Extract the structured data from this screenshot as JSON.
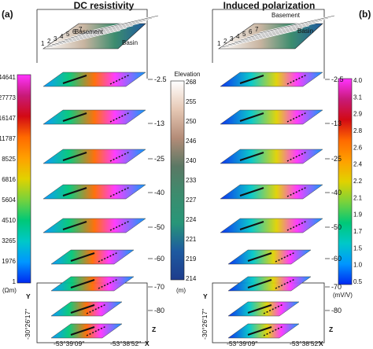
{
  "panel_a": {
    "label": "(a)",
    "title": "DC resistivity",
    "colorbar_ticks": [
      "44641",
      "27773",
      "16147",
      "11787",
      "8525",
      "6816",
      "5604",
      "4510",
      "3265",
      "1976",
      "1"
    ],
    "colorbar_unit": "(Ωm)",
    "colorbar_stops": [
      "#ff33ff",
      "#c81a78",
      "#d20a14",
      "#ff6a00",
      "#ffa000",
      "#e1d200",
      "#78d23c",
      "#00c878",
      "#00c8c8",
      "#0096ff",
      "#0028f0"
    ]
  },
  "panel_b": {
    "label": "(b)",
    "title": "Induced polarization",
    "colorbar_ticks": [
      "4.0",
      "3.1",
      "2.9",
      "2.8",
      "2.6",
      "2.4",
      "2.2",
      "2.1",
      "1.9",
      "1.7",
      "1.5",
      "1.0",
      "0.5"
    ],
    "colorbar_unit": "(mV/V)",
    "colorbar_stops": [
      "#ff33ff",
      "#c81a78",
      "#d20a14",
      "#ff6a00",
      "#ffa000",
      "#e1d200",
      "#78d23c",
      "#00c878",
      "#00c8c8",
      "#0096ff",
      "#0028f0"
    ]
  },
  "elevation": {
    "title": "Elevation",
    "ticks": [
      "268",
      "255",
      "250",
      "246",
      "240",
      "233",
      "227",
      "224",
      "221",
      "219",
      "214"
    ],
    "unit": "(m)",
    "stops": [
      "#ffffff",
      "#e6c8b4",
      "#b48c78",
      "#5a7864",
      "#3c8c6e",
      "#289678",
      "#1e5aa0",
      "#1e3c8c"
    ]
  },
  "depths": [
    "-2.5",
    "-13",
    "-25",
    "-40",
    "-50",
    "-60",
    "-70",
    "-80"
  ],
  "top_map": {
    "basement_label": "Basement",
    "basin_label": "Basin",
    "line_numbers": [
      "1",
      "2",
      "3",
      "4",
      "5",
      "6",
      "7"
    ]
  },
  "axes": {
    "lon_left": "-53°39'09\"",
    "lon_right": "-53°38'52\"",
    "lat": "-30°26'17\"",
    "x_label": "X",
    "y_label": "Y",
    "z_label": "Z"
  }
}
